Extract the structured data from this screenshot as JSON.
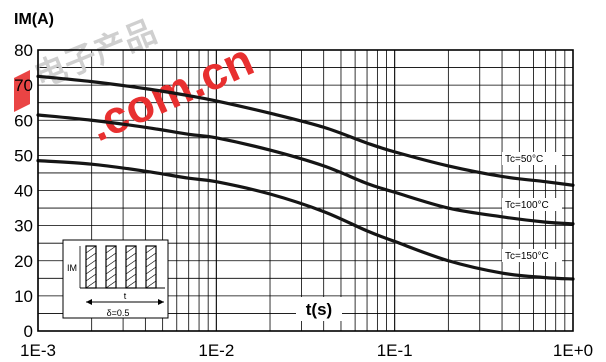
{
  "chart_data": {
    "type": "line",
    "title": "",
    "ylabel": "IM(A)",
    "xlabel": "t(s)",
    "x_scale": "log",
    "xlim": [
      0.001,
      1
    ],
    "ylim": [
      0,
      80
    ],
    "grid": true,
    "x_ticks": [
      "1E-3",
      "1E-2",
      "1E-1",
      "1E+0"
    ],
    "y_ticks": [
      "0",
      "10",
      "20",
      "30",
      "40",
      "50",
      "60",
      "70",
      "80"
    ],
    "series": [
      {
        "name": "Tc=50°C",
        "x": [
          0.001,
          0.002,
          0.004,
          0.007,
          0.01,
          0.02,
          0.04,
          0.07,
          0.1,
          0.2,
          0.4,
          0.7,
          1
        ],
        "values": [
          72.5,
          71,
          69,
          67,
          65.5,
          62,
          58,
          53.5,
          51,
          47,
          44,
          42.5,
          41.5
        ]
      },
      {
        "name": "Tc=100°C",
        "x": [
          0.001,
          0.002,
          0.004,
          0.007,
          0.01,
          0.02,
          0.04,
          0.07,
          0.1,
          0.2,
          0.4,
          0.7,
          1
        ],
        "values": [
          61.5,
          60,
          58,
          56,
          55,
          51.5,
          47,
          42,
          39.5,
          35,
          32.5,
          31,
          30.5
        ]
      },
      {
        "name": "Tc=150°C",
        "x": [
          0.001,
          0.002,
          0.004,
          0.007,
          0.01,
          0.02,
          0.04,
          0.07,
          0.1,
          0.2,
          0.4,
          0.7,
          1
        ],
        "values": [
          48.5,
          47.5,
          45.5,
          43.5,
          42.5,
          39,
          34,
          28.5,
          25.5,
          20,
          16.5,
          15.2,
          14.8
        ]
      }
    ],
    "inset": {
      "label_im": "IM",
      "label_t": "t",
      "label_delta": "δ=0.5"
    },
    "watermark": {
      "text": ".com.cn",
      "glyphs": "电子产品",
      "color": "#e83030"
    }
  }
}
